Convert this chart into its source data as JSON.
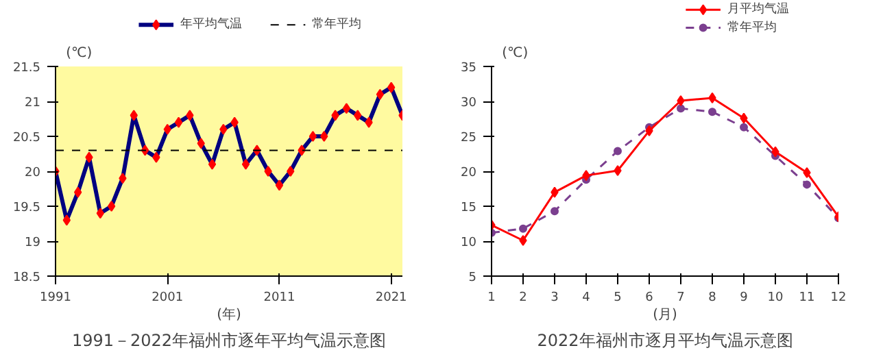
{
  "chart_data": [
    {
      "type": "line",
      "title": "1991－2022年福州市逐年平均气温示意图",
      "xlabel": "(年)",
      "ylabel": "(℃)",
      "x": [
        1991,
        1992,
        1993,
        1994,
        1995,
        1996,
        1997,
        1998,
        1999,
        2000,
        2001,
        2002,
        2003,
        2004,
        2005,
        2006,
        2007,
        2008,
        2009,
        2010,
        2011,
        2012,
        2013,
        2014,
        2015,
        2016,
        2017,
        2018,
        2019,
        2020,
        2021,
        2022
      ],
      "series": [
        {
          "name": "年平均气温",
          "color": "#000080",
          "values": [
            20.0,
            19.3,
            19.7,
            20.2,
            19.4,
            19.5,
            19.9,
            20.8,
            20.3,
            20.2,
            20.6,
            20.7,
            20.8,
            20.4,
            20.1,
            20.6,
            20.7,
            20.1,
            20.3,
            20.0,
            19.8,
            20.0,
            20.3,
            20.5,
            20.5,
            20.8,
            20.9,
            20.8,
            20.7,
            21.1,
            21.2,
            20.8
          ]
        }
      ],
      "ref_lines": [
        {
          "axis": "y",
          "value": 20.3,
          "label": "常年平均",
          "color": "#000000",
          "line_style": "dashed"
        }
      ],
      "xlim": [
        1991,
        2022
      ],
      "xticks": [
        1991,
        2001,
        2011,
        2021
      ],
      "ylim": [
        18.5,
        21.5
      ],
      "yticks": [
        18.5,
        19,
        19.5,
        20,
        20.5,
        21,
        21.5
      ],
      "marker": "diamond",
      "grid": false,
      "legend": "top"
    },
    {
      "type": "line",
      "title": "2022年福州市逐月平均气温示意图",
      "xlabel": "(月)",
      "ylabel": "(℃)",
      "x": [
        1,
        2,
        3,
        4,
        5,
        6,
        7,
        8,
        9,
        10,
        11,
        12
      ],
      "series": [
        {
          "name": "月平均气温",
          "color": "#ff0000",
          "marker": "diamond",
          "line_style": "solid",
          "values": [
            12.3,
            10.1,
            17.0,
            19.4,
            20.1,
            25.8,
            30.1,
            30.5,
            27.6,
            22.8,
            19.8,
            13.5
          ]
        },
        {
          "name": "常年平均",
          "color": "#7b3f8f",
          "marker": "circle",
          "line_style": "dashed",
          "values": [
            11.2,
            11.8,
            14.3,
            18.8,
            22.9,
            26.3,
            29.0,
            28.5,
            26.3,
            22.2,
            18.1,
            13.3
          ]
        }
      ],
      "xlim": [
        1,
        12
      ],
      "xticks": [
        1,
        2,
        3,
        4,
        5,
        6,
        7,
        8,
        9,
        10,
        11,
        12
      ],
      "ylim": [
        5,
        35
      ],
      "yticks": [
        5,
        10,
        15,
        20,
        25,
        30,
        35
      ],
      "grid": false,
      "legend": "top right"
    }
  ]
}
